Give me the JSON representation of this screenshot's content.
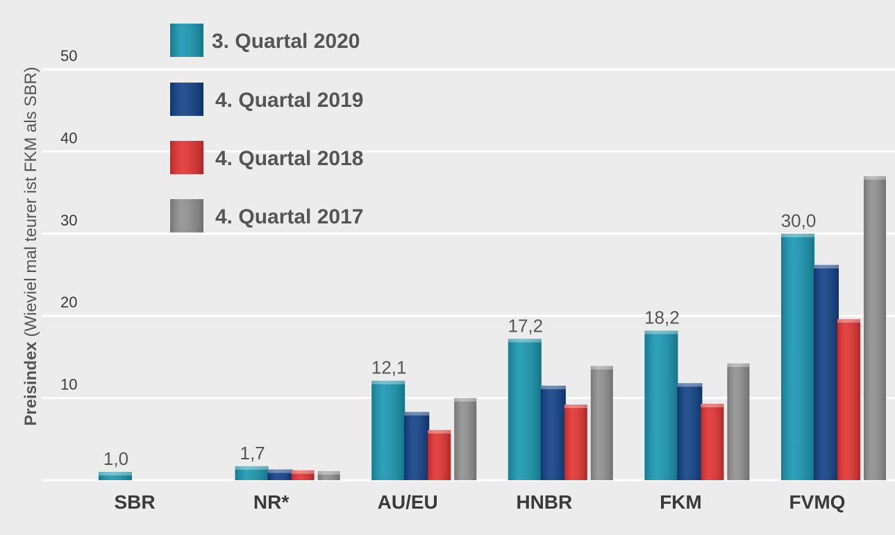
{
  "chart_data": {
    "type": "bar",
    "title": "",
    "ylabel_bold": "Preisindex",
    "ylabel_rest": " (Wieviel mal teurer ist FKM als SBR)",
    "xlabel": "",
    "ylim": [
      0,
      50
    ],
    "yticks": [
      10,
      20,
      30,
      40,
      50
    ],
    "grid": true,
    "legend_position": "top-left",
    "categories": [
      "SBR",
      "NR*",
      "AU/EU",
      "HNBR",
      "FKM",
      "FVMQ"
    ],
    "series": [
      {
        "name": "3. Quartal 2020",
        "color": "#1796b0",
        "values": [
          1.0,
          1.7,
          12.1,
          17.2,
          18.2,
          30.0
        ]
      },
      {
        "name": "4. Quartal 2019",
        "color": "#0e3f86",
        "values": [
          null,
          1.3,
          8.3,
          11.5,
          11.8,
          26.2
        ]
      },
      {
        "name": "4. Quartal 2018",
        "color": "#e3312f",
        "values": [
          null,
          1.2,
          6.1,
          9.2,
          9.3,
          19.6
        ]
      },
      {
        "name": "4. Quartal 2017",
        "color": "#8f8f8f",
        "values": [
          null,
          1.1,
          10.0,
          13.9,
          14.2,
          37.0
        ]
      }
    ],
    "data_labels": [
      "1,0",
      "1,7",
      "12,1",
      "17,2",
      "18,2",
      "30,0"
    ]
  }
}
